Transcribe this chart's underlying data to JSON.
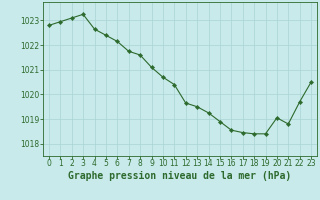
{
  "x": [
    0,
    1,
    2,
    3,
    4,
    5,
    6,
    7,
    8,
    9,
    10,
    11,
    12,
    13,
    14,
    15,
    16,
    17,
    18,
    19,
    20,
    21,
    22,
    23
  ],
  "y": [
    1022.8,
    1022.95,
    1023.1,
    1023.25,
    1022.65,
    1022.4,
    1022.15,
    1021.75,
    1021.6,
    1021.1,
    1020.7,
    1020.4,
    1019.65,
    1019.5,
    1019.25,
    1018.9,
    1018.55,
    1018.45,
    1018.4,
    1018.4,
    1019.05,
    1018.8,
    1019.7,
    1020.5
  ],
  "line_color": "#2d6a2d",
  "marker": "D",
  "marker_size": 2.2,
  "background_color": "#c8eaea",
  "grid_color": "#aad4d4",
  "xlabel": "Graphe pression niveau de la mer (hPa)",
  "xlabel_fontsize": 7,
  "ylim": [
    1017.5,
    1023.75
  ],
  "yticks": [
    1018,
    1019,
    1020,
    1021,
    1022,
    1023
  ],
  "xticks": [
    0,
    1,
    2,
    3,
    4,
    5,
    6,
    7,
    8,
    9,
    10,
    11,
    12,
    13,
    14,
    15,
    16,
    17,
    18,
    19,
    20,
    21,
    22,
    23
  ],
  "tick_color": "#2d6a2d",
  "tick_fontsize": 5.5,
  "border_color": "#2d6a2d",
  "xlim": [
    -0.5,
    23.5
  ]
}
